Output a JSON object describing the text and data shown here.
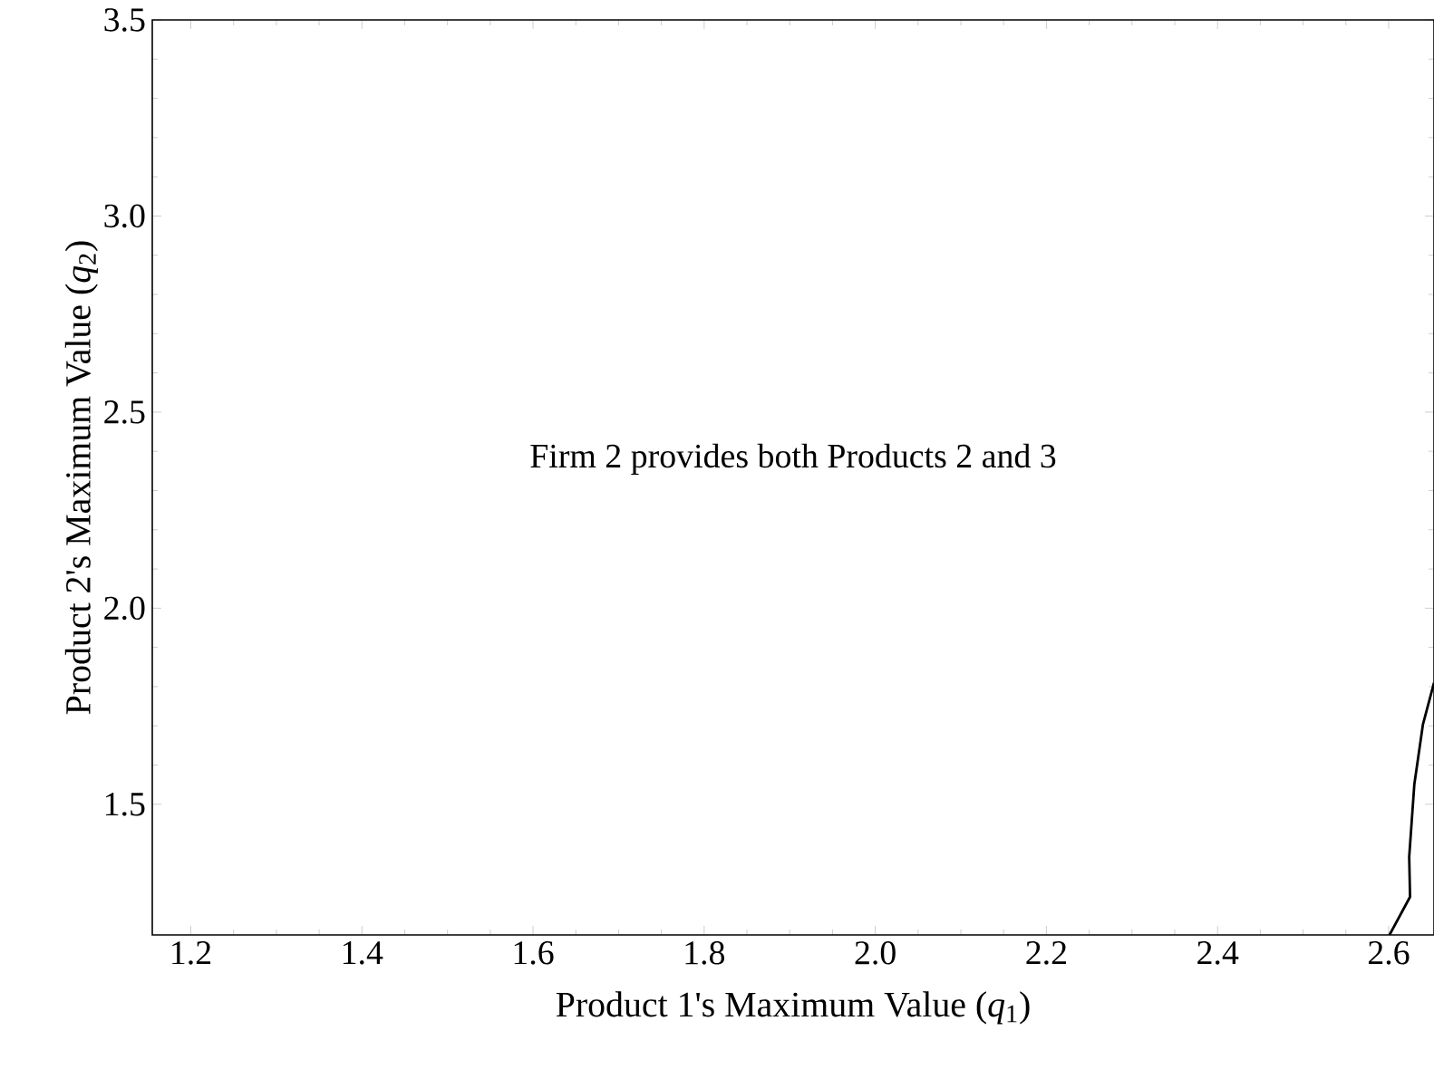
{
  "chart_data": {
    "type": "line",
    "xlabel": "Product 1's Maximum Value  (*q*$_{1}$)",
    "ylabel": "Product 2's Maximum Value  (*q*$_{2}$)",
    "annotations": [
      "Firm 2 provides both Products 2 and  3"
    ],
    "xlim": [
      1.155,
      2.653
    ],
    "ylim": [
      1.167,
      3.5
    ],
    "xticks": [
      1.2,
      1.4,
      1.6,
      1.8,
      {
        "value": 2.0,
        "label": "2.0"
      },
      2.2,
      2.4,
      2.6
    ],
    "yticks": [
      1.5,
      {
        "value": 2.0,
        "label": "2.0"
      },
      2.5,
      {
        "value": 3.0,
        "label": "3.0"
      },
      3.5
    ],
    "series": [
      {
        "color": "#000000",
        "x": [
          2.601,
          2.625,
          2.624,
          2.63,
          2.64,
          2.653
        ],
        "values": [
          1.167,
          1.264,
          1.366,
          1.551,
          1.703,
          1.81
        ]
      }
    ],
    "grid": false,
    "marker": "none",
    "line_style": "solid"
  }
}
